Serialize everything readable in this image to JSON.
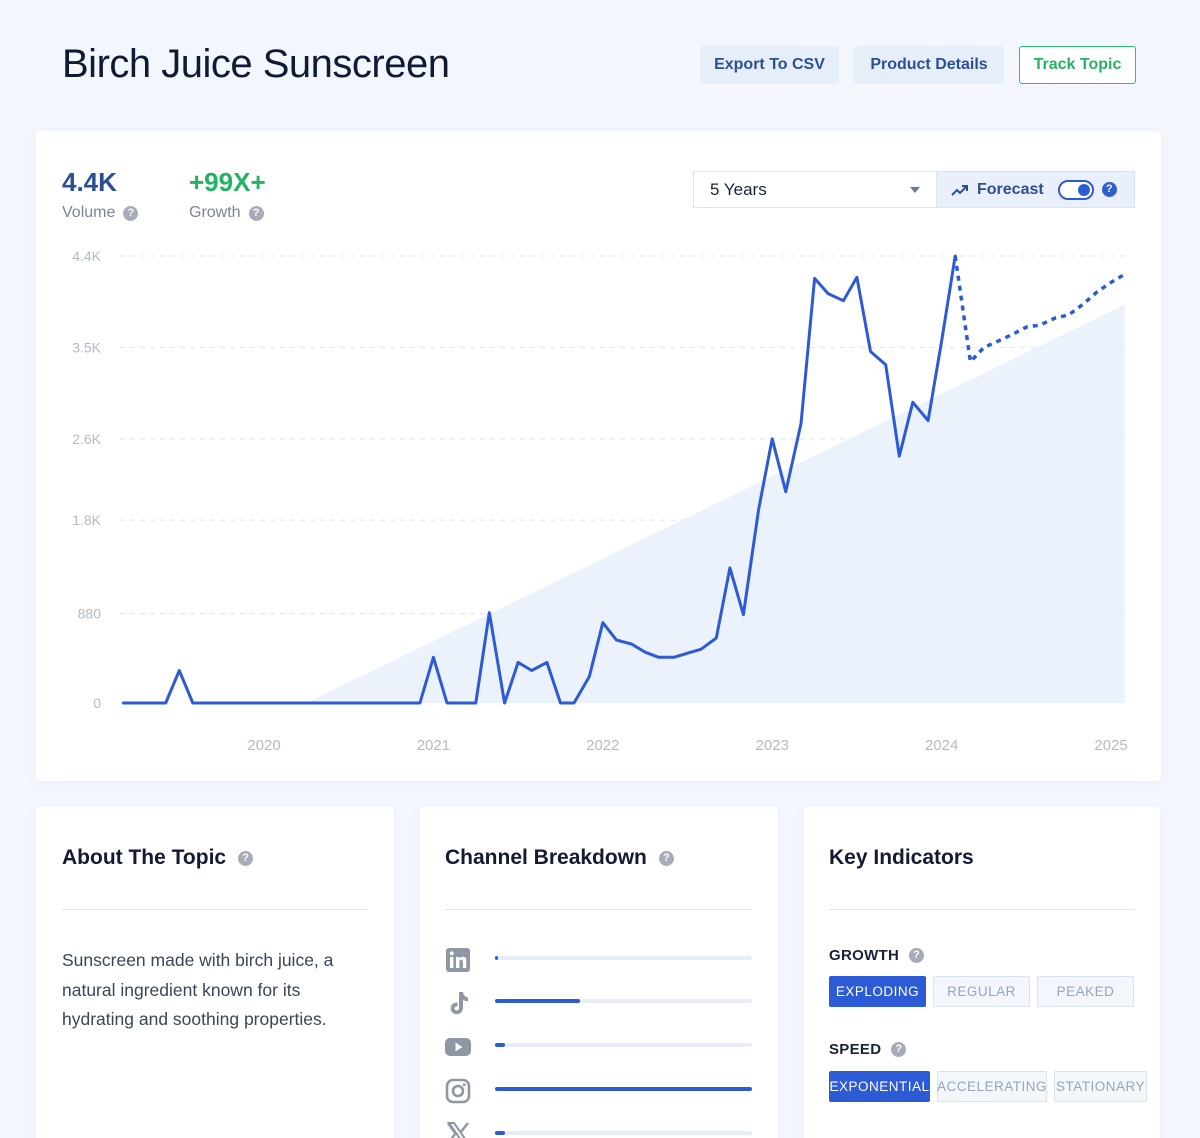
{
  "header": {
    "title": "Birch Juice Sunscreen",
    "buttons": {
      "export": "Export To CSV",
      "details": "Product Details",
      "track": "Track Topic"
    }
  },
  "metrics": {
    "volume": {
      "value": "4.4K",
      "label": "Volume"
    },
    "growth": {
      "value": "+99X+",
      "label": "Growth"
    }
  },
  "controls": {
    "range_value": "5 Years",
    "forecast_label": "Forecast",
    "forecast_enabled": true
  },
  "colors": {
    "line": "#2d5bd6",
    "growth_green": "#22b463",
    "brand_blue": "#2b4f96",
    "trend_fill": "#e8f0fc"
  },
  "chart_data": {
    "type": "line",
    "title": "",
    "xlabel": "",
    "ylabel": "",
    "ylim": [
      0,
      4400
    ],
    "yticks": [
      0,
      880,
      1800,
      2600,
      3500,
      4400
    ],
    "ytick_labels": [
      "0",
      "880",
      "1.8K",
      "2.6K",
      "3.5K",
      "4.4K"
    ],
    "xlim": [
      2019.15,
      2025.1
    ],
    "xticks": [
      2020,
      2021,
      2022,
      2023,
      2024,
      2025
    ],
    "xtick_labels": [
      "2020",
      "2021",
      "2022",
      "2023",
      "2024",
      "2025"
    ],
    "grid": true,
    "series": [
      {
        "role": "actual",
        "x": [
          2019.17,
          2019.42,
          2019.5,
          2019.58,
          2019.67,
          2019.75,
          2019.83,
          2019.92,
          2020.0,
          2020.08,
          2020.17,
          2020.25,
          2020.33,
          2020.42,
          2020.5,
          2020.58,
          2020.67,
          2020.75,
          2020.83,
          2020.92,
          2021.0,
          2021.08,
          2021.17,
          2021.25,
          2021.33,
          2021.42,
          2021.5,
          2021.58,
          2021.67,
          2021.75,
          2021.83,
          2021.92,
          2022.0,
          2022.08,
          2022.17,
          2022.25,
          2022.33,
          2022.42,
          2022.5,
          2022.58,
          2022.67,
          2022.75,
          2022.83,
          2022.92,
          2023.0,
          2023.08,
          2023.17,
          2023.25,
          2023.33,
          2023.42,
          2023.5,
          2023.58,
          2023.67,
          2023.75,
          2023.83,
          2023.92,
          2024.0,
          2024.08
        ],
        "y": [
          0,
          0,
          320,
          0,
          0,
          0,
          0,
          0,
          0,
          0,
          0,
          0,
          0,
          0,
          0,
          0,
          0,
          0,
          0,
          0,
          450,
          0,
          0,
          0,
          890,
          0,
          400,
          320,
          400,
          0,
          0,
          260,
          790,
          620,
          580,
          500,
          450,
          450,
          490,
          530,
          640,
          1330,
          870,
          1910,
          2600,
          2080,
          2750,
          4180,
          4030,
          3960,
          4190,
          3460,
          3330,
          2430,
          2960,
          2780,
          3560,
          4400
        ]
      },
      {
        "role": "forecast",
        "x": [
          2024.08,
          2024.17,
          2024.25,
          2024.33,
          2024.42,
          2024.5,
          2024.58,
          2024.67,
          2024.75,
          2024.83,
          2024.92,
          2025.0,
          2025.08
        ],
        "y": [
          4400,
          3360,
          3500,
          3560,
          3630,
          3700,
          3720,
          3790,
          3820,
          3920,
          4050,
          4140,
          4220
        ]
      },
      {
        "role": "trend",
        "x": [
          2020.25,
          2025.08
        ],
        "y": [
          0,
          3920
        ]
      }
    ]
  },
  "about": {
    "title": "About The Topic",
    "text": "Sunscreen made with birch juice, a natural ingredient known for its hydrating and soothing properties."
  },
  "channels": {
    "title": "Channel Breakdown",
    "items": [
      {
        "icon": "linkedin-icon",
        "value": 0.01
      },
      {
        "icon": "tiktok-icon",
        "value": 0.33
      },
      {
        "icon": "youtube-icon",
        "value": 0.04
      },
      {
        "icon": "instagram-icon",
        "value": 1.0
      },
      {
        "icon": "x-icon",
        "value": 0.04
      }
    ]
  },
  "indicators": {
    "title": "Key Indicators",
    "growth": {
      "label": "GROWTH",
      "options": [
        "EXPLODING",
        "REGULAR",
        "PEAKED"
      ],
      "active": 0
    },
    "speed": {
      "label": "SPEED",
      "options": [
        "EXPONENTIAL",
        "ACCELERATING",
        "STATIONARY"
      ],
      "active": 0
    }
  }
}
